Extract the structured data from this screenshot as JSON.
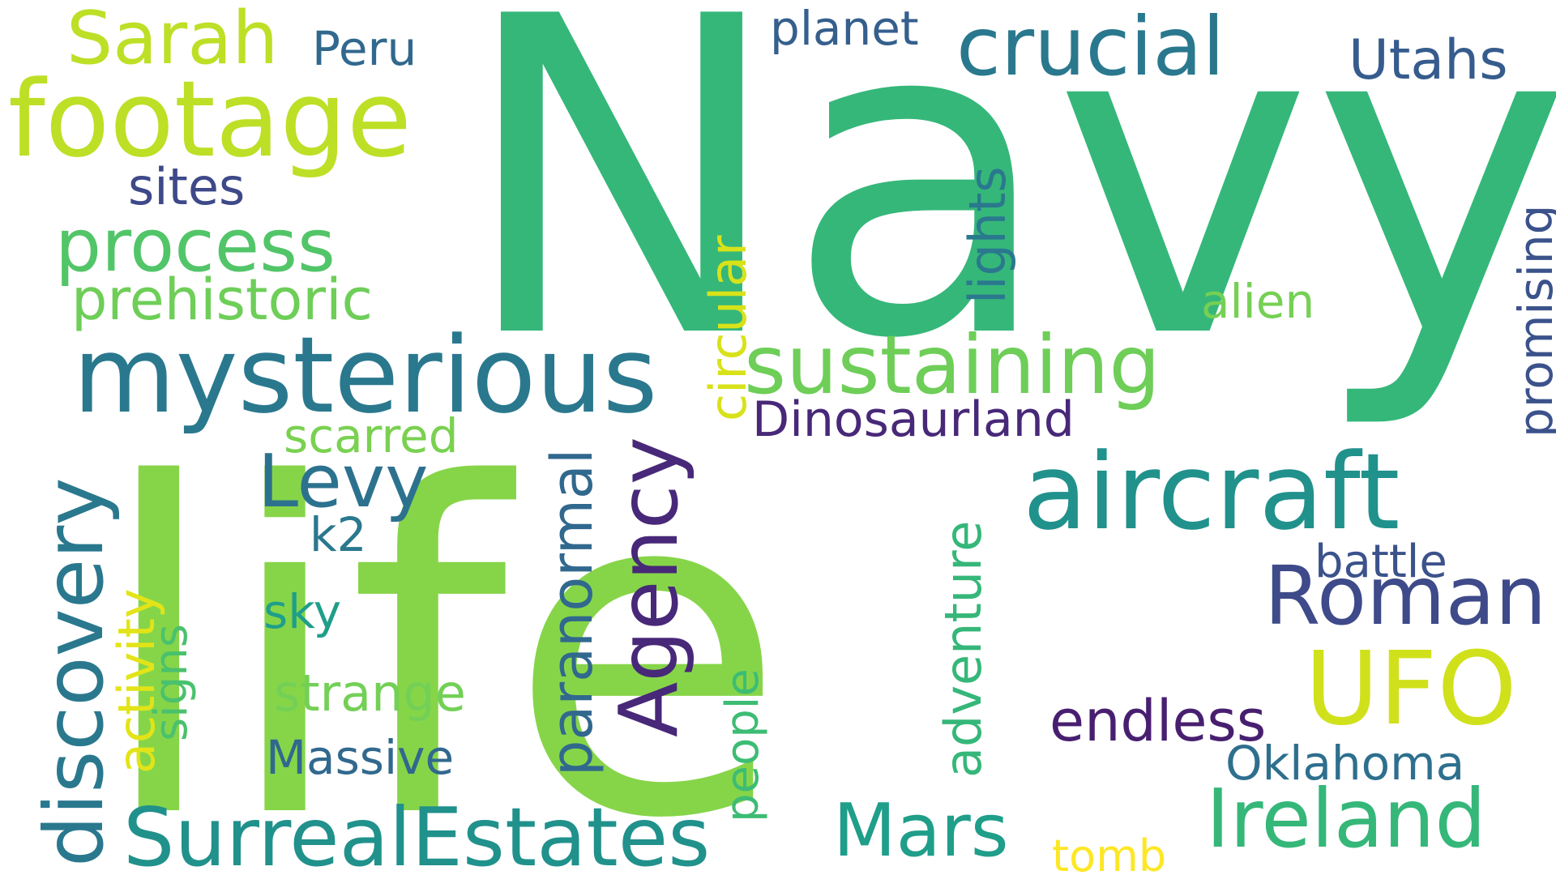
{
  "words": [
    {
      "text": "Navy",
      "color": "#35b779"
    },
    {
      "text": "life",
      "color": "#86d549"
    },
    {
      "text": "mysterious",
      "color": "#2a788e"
    },
    {
      "text": "footage",
      "color": "#bddf26"
    },
    {
      "text": "aircraft",
      "color": "#21918c"
    },
    {
      "text": "Sarah",
      "color": "#bddf26"
    },
    {
      "text": "crucial",
      "color": "#2a788e"
    },
    {
      "text": "sustaining",
      "color": "#6ece58"
    },
    {
      "text": "process",
      "color": "#52c569"
    },
    {
      "text": "discovery",
      "color": "#2a788e"
    },
    {
      "text": "SurrealEstates",
      "color": "#21918c"
    },
    {
      "text": "Ireland",
      "color": "#35b779"
    },
    {
      "text": "UFO",
      "color": "#d0e11c"
    },
    {
      "text": "Roman",
      "color": "#3e4a89"
    },
    {
      "text": "Agency",
      "color": "#482878"
    },
    {
      "text": "Mars",
      "color": "#1f9e89"
    },
    {
      "text": "Levy",
      "color": "#2c728e"
    },
    {
      "text": "prehistoric",
      "color": "#6ece58"
    },
    {
      "text": "paranormal",
      "color": "#31688e"
    },
    {
      "text": "adventure",
      "color": "#35b779"
    },
    {
      "text": "endless",
      "color": "#481f70"
    },
    {
      "text": "Dinosaurland",
      "color": "#482878"
    },
    {
      "text": "Utahs",
      "color": "#365c8d"
    },
    {
      "text": "planet",
      "color": "#355f8d"
    },
    {
      "text": "Peru",
      "color": "#31688e"
    },
    {
      "text": "sites",
      "color": "#3e4989"
    },
    {
      "text": "circular",
      "color": "#d8e219"
    },
    {
      "text": "lights",
      "color": "#2a788e"
    },
    {
      "text": "alien",
      "color": "#75d054"
    },
    {
      "text": "promising",
      "color": "#3b528b"
    },
    {
      "text": "activity",
      "color": "#e2e418"
    },
    {
      "text": "signs",
      "color": "#4ac16d"
    },
    {
      "text": "scarred",
      "color": "#7ad151"
    },
    {
      "text": "k2",
      "color": "#2a788e"
    },
    {
      "text": "sky",
      "color": "#1f9e89"
    },
    {
      "text": "strange",
      "color": "#73d056"
    },
    {
      "text": "Massive",
      "color": "#31688e"
    },
    {
      "text": "people",
      "color": "#3dbc74"
    },
    {
      "text": "battle",
      "color": "#3b528b"
    },
    {
      "text": "Oklahoma",
      "color": "#2e6f8e"
    },
    {
      "text": "tomb",
      "color": "#fde725"
    }
  ]
}
